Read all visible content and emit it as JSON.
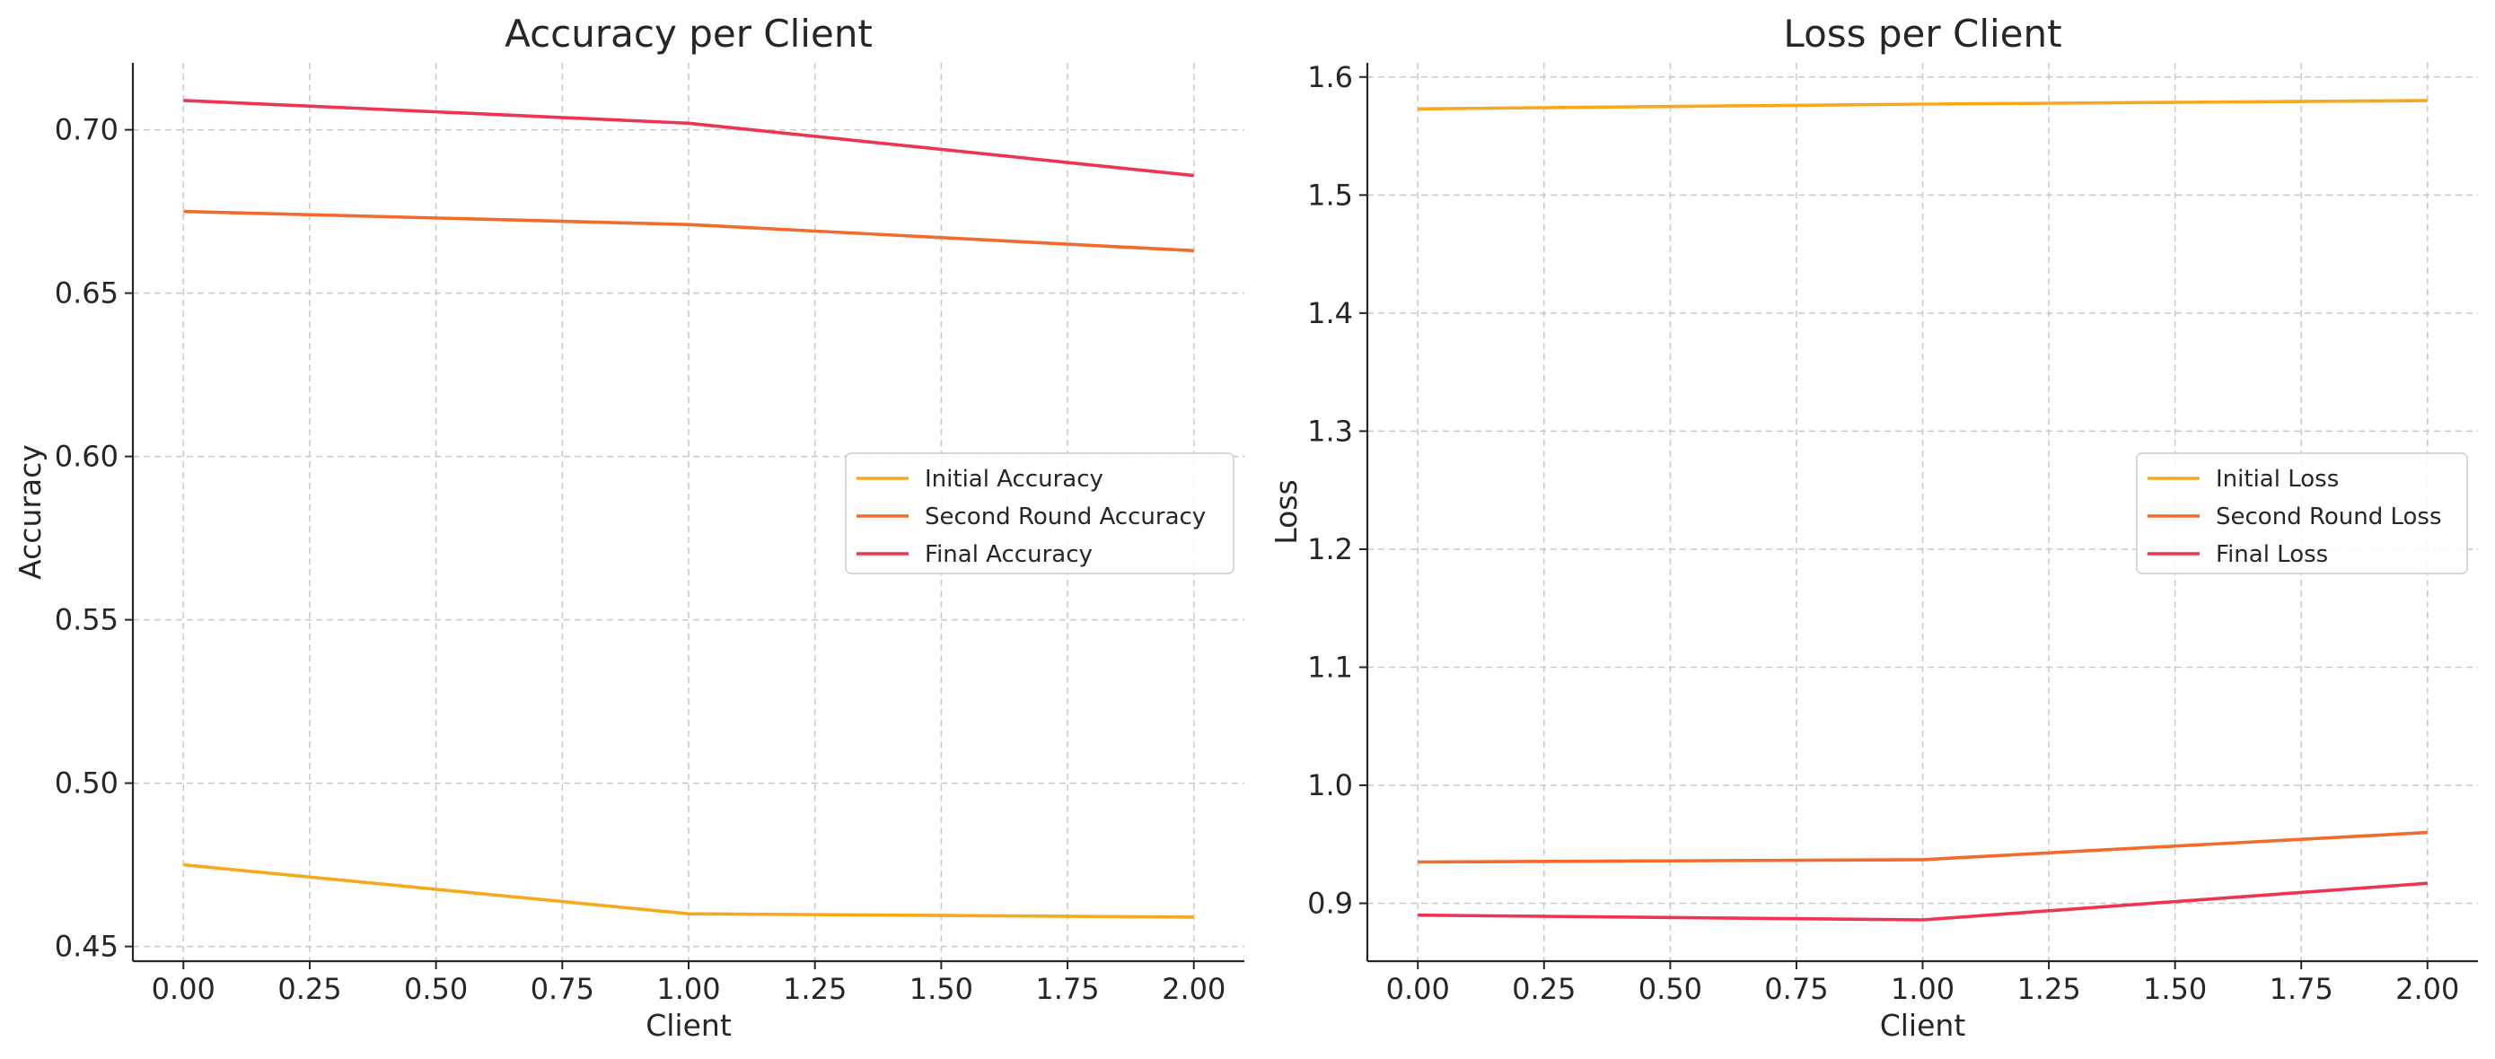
{
  "chart_data": [
    {
      "type": "line",
      "title": "Accuracy per Client",
      "xlabel": "Client",
      "ylabel": "Accuracy",
      "x": [
        0,
        1,
        2
      ],
      "xlim": [
        -0.1,
        2.1
      ],
      "ylim": [
        0.4455,
        0.7205
      ],
      "xticks": [
        "0.00",
        "0.25",
        "0.50",
        "0.75",
        "1.00",
        "1.25",
        "1.50",
        "1.75",
        "2.00"
      ],
      "yticks": [
        "0.45",
        "0.50",
        "0.55",
        "0.60",
        "0.65",
        "0.70"
      ],
      "grid": true,
      "legend_position": "center-right",
      "series": [
        {
          "name": "Initial Accuracy",
          "color": "#f7a81b",
          "values": [
            0.475,
            0.46,
            0.459
          ]
        },
        {
          "name": "Second Round Accuracy",
          "color": "#f26b2a",
          "values": [
            0.675,
            0.671,
            0.663
          ]
        },
        {
          "name": "Final Accuracy",
          "color": "#ee3353",
          "values": [
            0.709,
            0.702,
            0.686
          ]
        }
      ]
    },
    {
      "type": "line",
      "title": "Loss per Client",
      "xlabel": "Client",
      "ylabel": "Loss",
      "x": [
        0,
        1,
        2
      ],
      "xlim": [
        -0.1,
        2.1
      ],
      "ylim": [
        0.851,
        1.612
      ],
      "xticks": [
        "0.00",
        "0.25",
        "0.50",
        "0.75",
        "1.00",
        "1.25",
        "1.50",
        "1.75",
        "2.00"
      ],
      "yticks": [
        "0.9",
        "1.0",
        "1.1",
        "1.2",
        "1.3",
        "1.4",
        "1.5",
        "1.6"
      ],
      "grid": true,
      "legend_position": "center-right",
      "series": [
        {
          "name": "Initial Loss",
          "color": "#f7a81b",
          "values": [
            1.573,
            1.577,
            1.58
          ]
        },
        {
          "name": "Second Round Loss",
          "color": "#f26b2a",
          "values": [
            0.935,
            0.937,
            0.96
          ]
        },
        {
          "name": "Final Loss",
          "color": "#ee3353",
          "values": [
            0.89,
            0.886,
            0.917
          ]
        }
      ]
    }
  ]
}
